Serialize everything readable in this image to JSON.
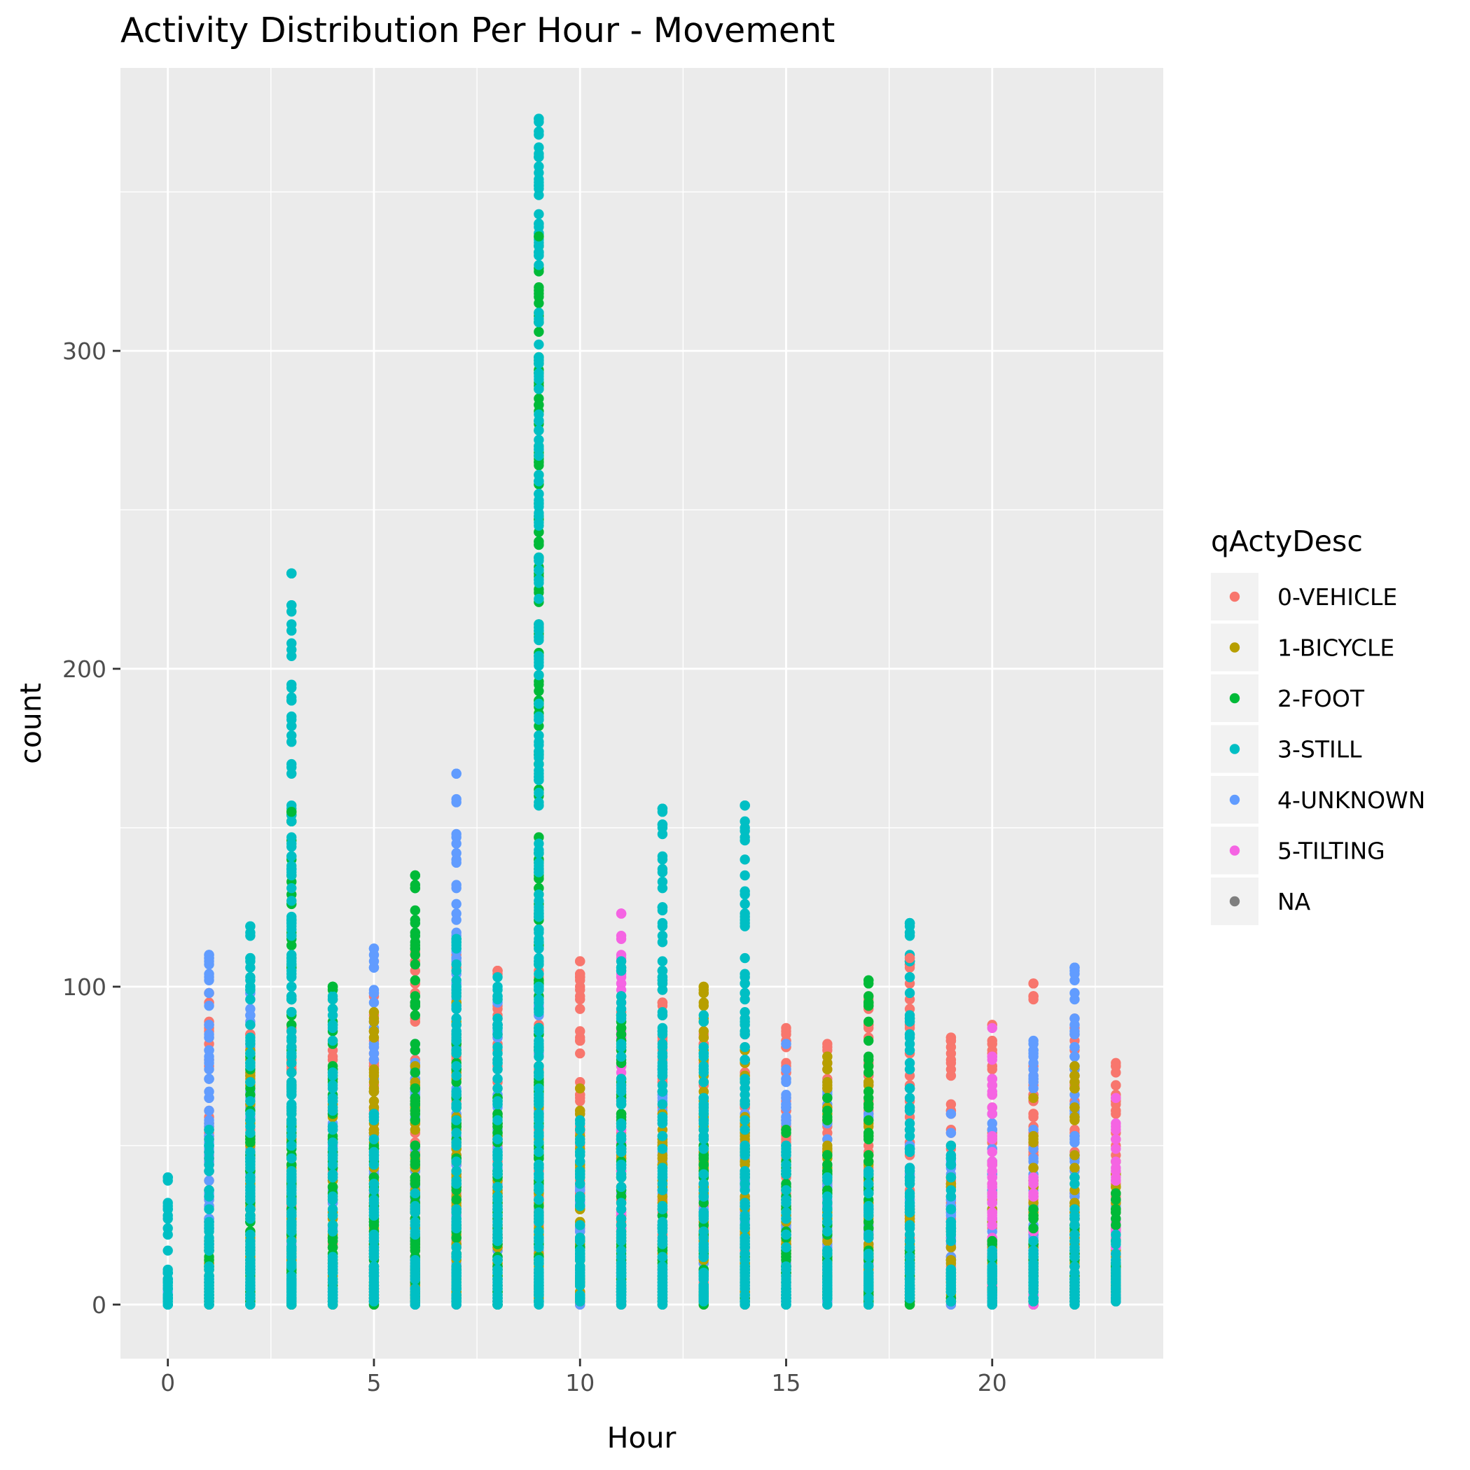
{
  "chart_data": {
    "type": "scatter",
    "title": "Activity Distribution Per Hour - Movement",
    "xlabel": "Hour",
    "ylabel": "count",
    "xlim": [
      -1.15,
      24.15
    ],
    "ylim": [
      -17,
      389
    ],
    "x_ticks": [
      0,
      5,
      10,
      15,
      20
    ],
    "x_tick_labels": [
      "0",
      "5",
      "10",
      "15",
      "20"
    ],
    "y_ticks": [
      0,
      100,
      200,
      300
    ],
    "y_tick_labels": [
      "0",
      "100",
      "200",
      "300"
    ],
    "x_minor_ticks": [
      2.5,
      7.5,
      12.5,
      17.5,
      22.5
    ],
    "y_minor_ticks": [
      50,
      150,
      250,
      350
    ],
    "grid": true,
    "panel_background": "#ebebeb",
    "legend": {
      "title": "qActyDesc",
      "position": "right",
      "entries": [
        {
          "label": "0-VEHICLE",
          "color": "#F8766D"
        },
        {
          "label": "1-BICYCLE",
          "color": "#B79F00"
        },
        {
          "label": "2-FOOT",
          "color": "#00BA38"
        },
        {
          "label": "3-STILL",
          "color": "#00BFC4"
        },
        {
          "label": "4-UNKNOWN",
          "color": "#619CFF"
        },
        {
          "label": "5-TILTING",
          "color": "#F564E3"
        },
        {
          "label": "NA",
          "color": "#7F7F7F"
        }
      ]
    },
    "columns": [
      {
        "hour": 0,
        "max": {
          "0-VEHICLE": 0,
          "1-BICYCLE": 0,
          "2-FOOT": 0,
          "3-STILL": 40,
          "4-UNKNOWN": 10,
          "5-TILTING": 0
        }
      },
      {
        "hour": 1,
        "max": {
          "0-VEHICLE": 98,
          "1-BICYCLE": 20,
          "2-FOOT": 15,
          "3-STILL": 55,
          "4-UNKNOWN": 110,
          "5-TILTING": 0
        }
      },
      {
        "hour": 2,
        "max": {
          "0-VEHICLE": 88,
          "1-BICYCLE": 80,
          "2-FOOT": 78,
          "3-STILL": 119,
          "4-UNKNOWN": 98,
          "5-TILTING": 0
        }
      },
      {
        "hour": 3,
        "max": {
          "0-VEHICLE": 87,
          "1-BICYCLE": 60,
          "2-FOOT": 155,
          "3-STILL": 230,
          "4-UNKNOWN": 40,
          "5-TILTING": 0
        }
      },
      {
        "hour": 4,
        "max": {
          "0-VEHICLE": 80,
          "1-BICYCLE": 65,
          "2-FOOT": 100,
          "3-STILL": 97,
          "4-UNKNOWN": 60,
          "5-TILTING": 0
        }
      },
      {
        "hour": 5,
        "max": {
          "0-VEHICLE": 97,
          "1-BICYCLE": 92,
          "2-FOOT": 50,
          "3-STILL": 60,
          "4-UNKNOWN": 112,
          "5-TILTING": 0
        }
      },
      {
        "hour": 6,
        "max": {
          "0-VEHICLE": 111,
          "1-BICYCLE": 75,
          "2-FOOT": 135,
          "3-STILL": 35,
          "4-UNKNOWN": 82,
          "5-TILTING": 0
        }
      },
      {
        "hour": 7,
        "max": {
          "0-VEHICLE": 110,
          "1-BICYCLE": 95,
          "2-FOOT": 85,
          "3-STILL": 115,
          "4-UNKNOWN": 167,
          "5-TILTING": 0
        }
      },
      {
        "hour": 8,
        "max": {
          "0-VEHICLE": 105,
          "1-BICYCLE": 60,
          "2-FOOT": 65,
          "3-STILL": 103,
          "4-UNKNOWN": 95,
          "5-TILTING": 0
        }
      },
      {
        "hour": 9,
        "max": {
          "0-VEHICLE": 105,
          "1-BICYCLE": 70,
          "2-FOOT": 336,
          "3-STILL": 373,
          "4-UNKNOWN": 100,
          "5-TILTING": 0
        }
      },
      {
        "hour": 10,
        "max": {
          "0-VEHICLE": 108,
          "1-BICYCLE": 68,
          "2-FOOT": 20,
          "3-STILL": 58,
          "4-UNKNOWN": 45,
          "5-TILTING": 0
        }
      },
      {
        "hour": 11,
        "max": {
          "0-VEHICLE": 92,
          "1-BICYCLE": 50,
          "2-FOOT": 97,
          "3-STILL": 108,
          "4-UNKNOWN": 60,
          "5-TILTING": 123
        }
      },
      {
        "hour": 12,
        "max": {
          "0-VEHICLE": 101,
          "1-BICYCLE": 60,
          "2-FOOT": 30,
          "3-STILL": 156,
          "4-UNKNOWN": 75,
          "5-TILTING": 0
        }
      },
      {
        "hour": 13,
        "max": {
          "0-VEHICLE": 85,
          "1-BICYCLE": 100,
          "2-FOOT": 50,
          "3-STILL": 91,
          "4-UNKNOWN": 65,
          "5-TILTING": 0
        }
      },
      {
        "hour": 14,
        "max": {
          "0-VEHICLE": 85,
          "1-BICYCLE": 80,
          "2-FOOT": 15,
          "3-STILL": 157,
          "4-UNKNOWN": 60,
          "5-TILTING": 0
        }
      },
      {
        "hour": 15,
        "max": {
          "0-VEHICLE": 87,
          "1-BICYCLE": 30,
          "2-FOOT": 55,
          "3-STILL": 50,
          "4-UNKNOWN": 82,
          "5-TILTING": 0
        }
      },
      {
        "hour": 16,
        "max": {
          "0-VEHICLE": 82,
          "1-BICYCLE": 78,
          "2-FOOT": 65,
          "3-STILL": 40,
          "4-UNKNOWN": 70,
          "5-TILTING": 0
        }
      },
      {
        "hour": 17,
        "max": {
          "0-VEHICLE": 97,
          "1-BICYCLE": 70,
          "2-FOOT": 102,
          "3-STILL": 42,
          "4-UNKNOWN": 60,
          "5-TILTING": 3
        }
      },
      {
        "hour": 18,
        "max": {
          "0-VEHICLE": 109,
          "1-BICYCLE": 30,
          "2-FOOT": 20,
          "3-STILL": 120,
          "4-UNKNOWN": 50,
          "5-TILTING": 0
        }
      },
      {
        "hour": 19,
        "max": {
          "0-VEHICLE": 84,
          "1-BICYCLE": 40,
          "2-FOOT": 10,
          "3-STILL": 50,
          "4-UNKNOWN": 60,
          "5-TILTING": 0
        }
      },
      {
        "hour": 20,
        "max": {
          "0-VEHICLE": 88,
          "1-BICYCLE": 35,
          "2-FOOT": 20,
          "3-STILL": 17,
          "4-UNKNOWN": 60,
          "5-TILTING": 87
        }
      },
      {
        "hour": 21,
        "max": {
          "0-VEHICLE": 101,
          "1-BICYCLE": 65,
          "2-FOOT": 30,
          "3-STILL": 20,
          "4-UNKNOWN": 83,
          "5-TILTING": 40
        }
      },
      {
        "hour": 22,
        "max": {
          "0-VEHICLE": 90,
          "1-BICYCLE": 75,
          "2-FOOT": 25,
          "3-STILL": 40,
          "4-UNKNOWN": 106,
          "5-TILTING": 10
        }
      },
      {
        "hour": 23,
        "max": {
          "0-VEHICLE": 76,
          "1-BICYCLE": 45,
          "2-FOOT": 35,
          "3-STILL": 22,
          "4-UNKNOWN": 35,
          "5-TILTING": 65
        }
      }
    ],
    "outliers": [
      {
        "x": 0,
        "y": 40,
        "group": "3-STILL"
      },
      {
        "x": 1,
        "y": 110,
        "group": "4-UNKNOWN"
      },
      {
        "x": 1,
        "y": 107,
        "group": "4-UNKNOWN"
      },
      {
        "x": 2,
        "y": 119,
        "group": "3-STILL"
      },
      {
        "x": 2,
        "y": 100,
        "group": "3-STILL"
      },
      {
        "x": 3,
        "y": 230,
        "group": "3-STILL"
      },
      {
        "x": 3,
        "y": 155,
        "group": "2-FOOT"
      },
      {
        "x": 3,
        "y": 96,
        "group": "3-STILL"
      },
      {
        "x": 4,
        "y": 100,
        "group": "2-FOOT"
      },
      {
        "x": 5,
        "y": 112,
        "group": "4-UNKNOWN"
      },
      {
        "x": 6,
        "y": 135,
        "group": "2-FOOT"
      },
      {
        "x": 7,
        "y": 167,
        "group": "4-UNKNOWN"
      },
      {
        "x": 7,
        "y": 115,
        "group": "3-STILL"
      },
      {
        "x": 9,
        "y": 373,
        "group": "3-STILL"
      },
      {
        "x": 9,
        "y": 337,
        "group": "3-STILL"
      },
      {
        "x": 9,
        "y": 336,
        "group": "2-FOOT"
      },
      {
        "x": 9,
        "y": 107,
        "group": "3-STILL"
      },
      {
        "x": 10,
        "y": 108,
        "group": "0-VEHICLE"
      },
      {
        "x": 11,
        "y": 123,
        "group": "5-TILTING"
      },
      {
        "x": 11,
        "y": 115,
        "group": "5-TILTING"
      },
      {
        "x": 12,
        "y": 156,
        "group": "3-STILL"
      },
      {
        "x": 12,
        "y": 119,
        "group": "3-STILL"
      },
      {
        "x": 13,
        "y": 100,
        "group": "1-BICYCLE"
      },
      {
        "x": 14,
        "y": 157,
        "group": "3-STILL"
      },
      {
        "x": 17,
        "y": 102,
        "group": "2-FOOT"
      },
      {
        "x": 18,
        "y": 120,
        "group": "3-STILL"
      },
      {
        "x": 18,
        "y": 109,
        "group": "0-VEHICLE"
      },
      {
        "x": 21,
        "y": 101,
        "group": "0-VEHICLE"
      },
      {
        "x": 22,
        "y": 106,
        "group": "4-UNKNOWN"
      }
    ]
  }
}
